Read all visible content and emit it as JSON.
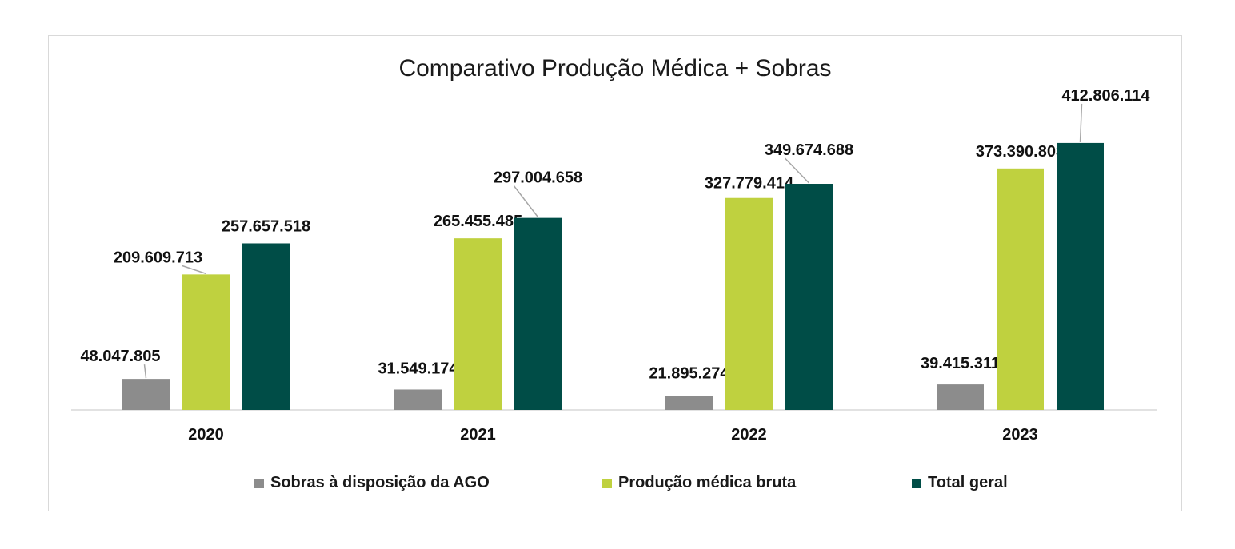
{
  "chart_data": {
    "type": "bar",
    "title": "Comparativo Produção Médica + Sobras",
    "xlabel": "",
    "ylabel": "",
    "ylim": [
      0,
      430000000
    ],
    "grid": false,
    "legend_position": "bottom",
    "categories": [
      "2020",
      "2021",
      "2022",
      "2023"
    ],
    "series": [
      {
        "name": "Sobras à disposição da AGO",
        "color": "#8c8c8c",
        "values": [
          48047805,
          31549174,
          21895274,
          39415311
        ],
        "labels": [
          "48.047.805",
          "31.549.174",
          "21.895.274",
          "39.415.311"
        ]
      },
      {
        "name": "Produção médica bruta",
        "color": "#bfd13f",
        "values": [
          209609713,
          265455485,
          327779414,
          373390803
        ],
        "labels": [
          "209.609.713",
          "265.455.485",
          "327.779.414",
          "373.390.803"
        ]
      },
      {
        "name": "Total geral",
        "color": "#004d47",
        "values": [
          257657518,
          297004658,
          349674688,
          412806114
        ],
        "labels": [
          "257.657.518",
          "297.004.658",
          "349.674.688",
          "412.806.114"
        ]
      }
    ]
  }
}
